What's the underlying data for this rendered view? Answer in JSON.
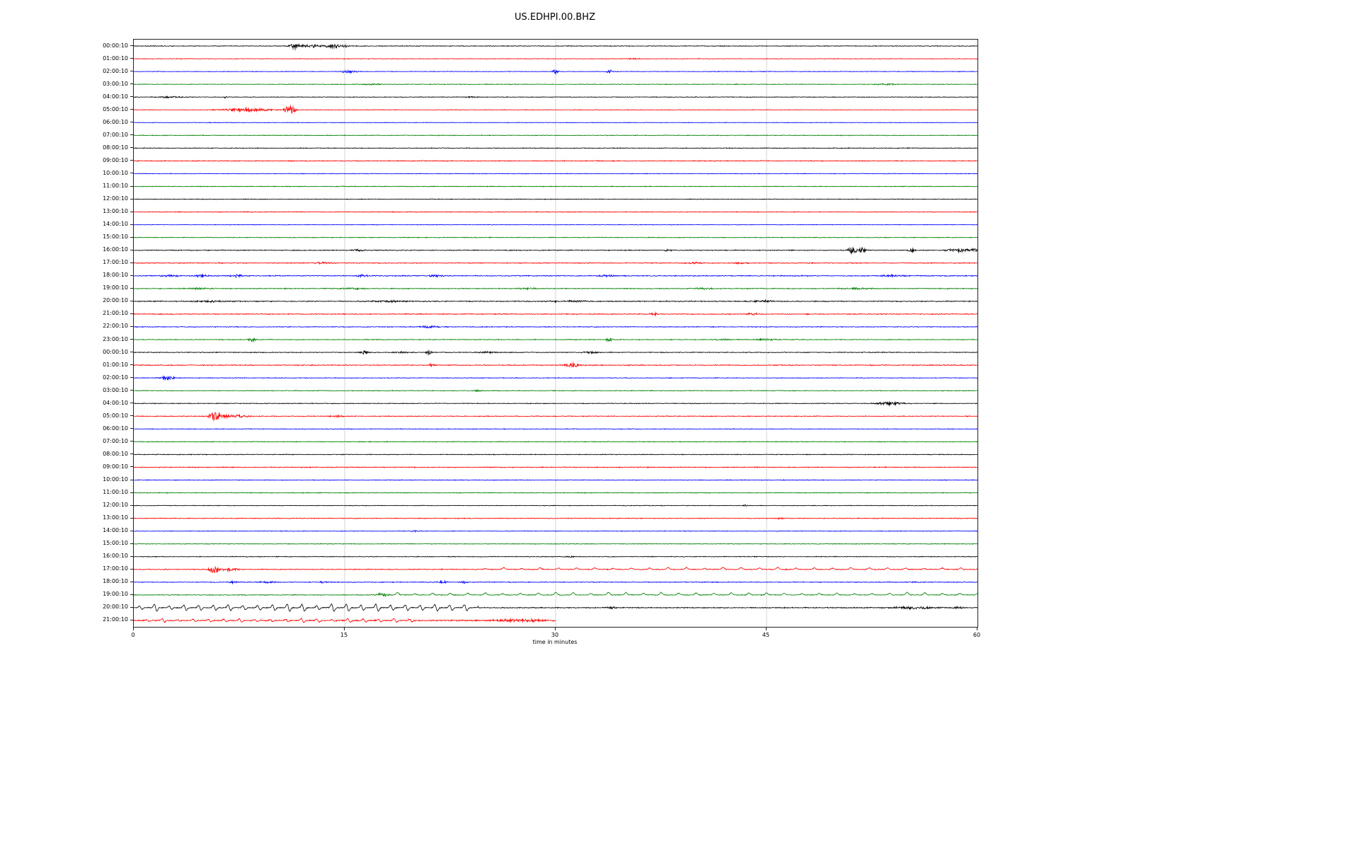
{
  "title": "US.EDHPI.00.BHZ",
  "xlabel": "time in minutes",
  "chart_data": {
    "type": "line",
    "title": "US.EDHPI.00.BHZ",
    "xlabel": "time in minutes",
    "xlim": [
      0,
      60
    ],
    "x_ticks": [
      0,
      15,
      30,
      45,
      60
    ],
    "grid_x": [
      15,
      30,
      45
    ],
    "grid_color": "#c8c8c8",
    "color_cycle": [
      "#000000",
      "#ff0000",
      "#0000ff",
      "#008000"
    ],
    "rows": [
      {
        "label": "00:00:10",
        "color": "#000000",
        "noise": 0.6,
        "events": [
          {
            "t": 11.4,
            "w": 0.25,
            "amp": 3.5
          },
          {
            "t": 12.5,
            "w": 0.8,
            "amp": 2
          },
          {
            "t": 14.2,
            "w": 0.5,
            "amp": 2.4
          },
          {
            "t": 15.0,
            "w": 0.2,
            "amp": 2
          }
        ]
      },
      {
        "label": "01:00:10",
        "color": "#ff0000",
        "noise": 0.5,
        "events": [
          {
            "t": 35.5,
            "w": 0.3,
            "amp": 1.2
          }
        ]
      },
      {
        "label": "02:00:10",
        "color": "#0000ff",
        "noise": 0.5,
        "events": [
          {
            "t": 15.3,
            "w": 0.4,
            "amp": 2
          },
          {
            "t": 30.0,
            "w": 0.15,
            "amp": 3
          },
          {
            "t": 33.8,
            "w": 0.15,
            "amp": 2.5
          }
        ]
      },
      {
        "label": "03:00:10",
        "color": "#008000",
        "noise": 0.55,
        "events": [
          {
            "t": 17,
            "w": 0.6,
            "amp": 1
          },
          {
            "t": 53.5,
            "w": 0.6,
            "amp": 1
          }
        ]
      },
      {
        "label": "04:00:10",
        "color": "#000000",
        "noise": 0.55,
        "events": [
          {
            "t": 2.5,
            "w": 0.8,
            "amp": 1.2
          },
          {
            "t": 6.5,
            "w": 0.1,
            "amp": 1.5
          },
          {
            "t": 24,
            "w": 0.3,
            "amp": 1
          }
        ]
      },
      {
        "label": "05:00:10",
        "color": "#ff0000",
        "noise": 0.5,
        "events": [
          {
            "t": 8,
            "w": 1.3,
            "amp": 2.2
          },
          {
            "t": 11.1,
            "w": 0.25,
            "amp": 6.5
          }
        ]
      },
      {
        "label": "06:00:10",
        "color": "#0000ff",
        "noise": 0.5
      },
      {
        "label": "07:00:10",
        "color": "#008000",
        "noise": 0.6
      },
      {
        "label": "08:00:10",
        "color": "#000000",
        "noise": 0.6
      },
      {
        "label": "09:00:10",
        "color": "#ff0000",
        "noise": 0.7
      },
      {
        "label": "10:00:10",
        "color": "#0000ff",
        "noise": 0.55
      },
      {
        "label": "11:00:10",
        "color": "#008000",
        "noise": 0.6
      },
      {
        "label": "12:00:10",
        "color": "#000000",
        "noise": 0.55
      },
      {
        "label": "13:00:10",
        "color": "#ff0000",
        "noise": 0.6
      },
      {
        "label": "14:00:10",
        "color": "#0000ff",
        "noise": 0.5
      },
      {
        "label": "15:00:10",
        "color": "#008000",
        "noise": 0.6
      },
      {
        "label": "16:00:10",
        "color": "#000000",
        "noise": 0.7,
        "events": [
          {
            "t": 16,
            "w": 0.3,
            "amp": 1.5
          },
          {
            "t": 38,
            "w": 0.3,
            "amp": 1.2
          },
          {
            "t": 51.1,
            "w": 0.25,
            "amp": 4.5
          },
          {
            "t": 51.8,
            "w": 0.2,
            "amp": 3.5
          },
          {
            "t": 55.3,
            "w": 0.2,
            "amp": 2.5
          },
          {
            "t": 58.6,
            "w": 0.7,
            "amp": 2
          },
          {
            "t": 59.8,
            "w": 0.3,
            "amp": 2.5
          }
        ]
      },
      {
        "label": "17:00:10",
        "color": "#ff0000",
        "noise": 0.7,
        "events": [
          {
            "t": 13.5,
            "w": 0.4,
            "amp": 1.3
          },
          {
            "t": 40,
            "w": 0.5,
            "amp": 1.2
          },
          {
            "t": 43,
            "w": 0.4,
            "amp": 1.2
          },
          {
            "t": 48,
            "w": 0.4,
            "amp": 1
          }
        ]
      },
      {
        "label": "18:00:10",
        "color": "#0000ff",
        "noise": 0.8,
        "events": [
          {
            "t": 2.5,
            "w": 0.5,
            "amp": 1.5
          },
          {
            "t": 4.8,
            "w": 0.4,
            "amp": 1.6
          },
          {
            "t": 7.3,
            "w": 0.4,
            "amp": 1.8
          },
          {
            "t": 16.3,
            "w": 0.4,
            "amp": 1.5
          },
          {
            "t": 21.5,
            "w": 0.4,
            "amp": 1.4
          },
          {
            "t": 33.5,
            "w": 0.5,
            "amp": 1.4
          },
          {
            "t": 54,
            "w": 0.6,
            "amp": 1.4
          }
        ]
      },
      {
        "label": "19:00:10",
        "color": "#008000",
        "noise": 0.7,
        "events": [
          {
            "t": 4.5,
            "w": 0.8,
            "amp": 1.2
          },
          {
            "t": 15.5,
            "w": 0.7,
            "amp": 1.2
          },
          {
            "t": 28,
            "w": 0.6,
            "amp": 1.2
          },
          {
            "t": 40.5,
            "w": 0.6,
            "amp": 1.1
          },
          {
            "t": 51.5,
            "w": 0.8,
            "amp": 1.2
          }
        ]
      },
      {
        "label": "20:00:10",
        "color": "#000000",
        "noise": 0.8,
        "events": [
          {
            "t": 5.5,
            "w": 1,
            "amp": 1.2
          },
          {
            "t": 18,
            "w": 1,
            "amp": 1.2
          },
          {
            "t": 31,
            "w": 1,
            "amp": 1.2
          },
          {
            "t": 44.7,
            "w": 0.8,
            "amp": 1.3
          }
        ]
      },
      {
        "label": "21:00:10",
        "color": "#ff0000",
        "noise": 0.75,
        "events": [
          {
            "t": 37,
            "w": 0.3,
            "amp": 1.8
          },
          {
            "t": 44,
            "w": 0.3,
            "amp": 1.6
          }
        ]
      },
      {
        "label": "22:00:10",
        "color": "#0000ff",
        "noise": 0.65,
        "events": [
          {
            "t": 21,
            "w": 0.5,
            "amp": 1.5
          }
        ]
      },
      {
        "label": "23:00:10",
        "color": "#008000",
        "noise": 0.65,
        "events": [
          {
            "t": 8.4,
            "w": 0.2,
            "amp": 2.5
          },
          {
            "t": 33.8,
            "w": 0.2,
            "amp": 2.5
          },
          {
            "t": 42,
            "w": 0.5,
            "amp": 1.2
          },
          {
            "t": 45,
            "w": 0.5,
            "amp": 1.2
          }
        ]
      },
      {
        "label": "00:00:10",
        "color": "#000000",
        "noise": 0.65,
        "events": [
          {
            "t": 16.4,
            "w": 0.25,
            "amp": 2.2
          },
          {
            "t": 19,
            "w": 0.3,
            "amp": 1.6
          },
          {
            "t": 21,
            "w": 0.15,
            "amp": 3
          },
          {
            "t": 25,
            "w": 0.6,
            "amp": 1.2
          },
          {
            "t": 32.5,
            "w": 0.4,
            "amp": 1.5
          }
        ]
      },
      {
        "label": "01:00:10",
        "color": "#ff0000",
        "noise": 0.75,
        "events": [
          {
            "t": 21.2,
            "w": 0.2,
            "amp": 1.8
          },
          {
            "t": 31.2,
            "w": 0.4,
            "amp": 2.8
          }
        ]
      },
      {
        "label": "02:00:10",
        "color": "#0000ff",
        "noise": 0.6,
        "events": [
          {
            "t": 2.4,
            "w": 0.4,
            "amp": 2.6
          }
        ]
      },
      {
        "label": "03:00:10",
        "color": "#008000",
        "noise": 0.6,
        "events": [
          {
            "t": 24.5,
            "w": 0.3,
            "amp": 1
          }
        ]
      },
      {
        "label": "04:00:10",
        "color": "#000000",
        "noise": 0.6,
        "events": [
          {
            "t": 53.7,
            "w": 0.7,
            "amp": 2.2
          }
        ]
      },
      {
        "label": "05:00:10",
        "color": "#ff0000",
        "noise": 0.65,
        "events": [
          {
            "t": 5.8,
            "w": 0.3,
            "amp": 6.5
          },
          {
            "t": 7,
            "w": 0.8,
            "amp": 2.2
          },
          {
            "t": 14.5,
            "w": 0.5,
            "amp": 1
          }
        ]
      },
      {
        "label": "06:00:10",
        "color": "#0000ff",
        "noise": 0.55
      },
      {
        "label": "07:00:10",
        "color": "#008000",
        "noise": 0.6
      },
      {
        "label": "08:00:10",
        "color": "#000000",
        "noise": 0.6
      },
      {
        "label": "09:00:10",
        "color": "#ff0000",
        "noise": 0.7
      },
      {
        "label": "10:00:10",
        "color": "#0000ff",
        "noise": 0.6
      },
      {
        "label": "11:00:10",
        "color": "#008000",
        "noise": 0.6
      },
      {
        "label": "12:00:10",
        "color": "#000000",
        "noise": 0.5,
        "events": [
          {
            "t": 43.5,
            "w": 0.15,
            "amp": 1.2
          }
        ]
      },
      {
        "label": "13:00:10",
        "color": "#ff0000",
        "noise": 0.65,
        "events": [
          {
            "t": 46,
            "w": 0.3,
            "amp": 1
          }
        ]
      },
      {
        "label": "14:00:10",
        "color": "#0000ff",
        "noise": 0.55,
        "events": [
          {
            "t": 20,
            "w": 0.3,
            "amp": 1
          }
        ]
      },
      {
        "label": "15:00:10",
        "color": "#008000",
        "noise": 0.6
      },
      {
        "label": "16:00:10",
        "color": "#000000",
        "noise": 0.6,
        "events": [
          {
            "t": 31,
            "w": 0.4,
            "amp": 1
          }
        ]
      },
      {
        "label": "17:00:10",
        "color": "#ff0000",
        "noise": 0.7,
        "events": [
          {
            "t": 5.7,
            "w": 0.25,
            "amp": 5.5
          },
          {
            "t": 6.8,
            "w": 0.6,
            "amp": 1.8
          }
        ],
        "spikes": [
          {
            "start": 25,
            "end": 60,
            "interval": 1.3,
            "amp": 2.2,
            "dir": 1
          }
        ]
      },
      {
        "label": "18:00:10",
        "color": "#0000ff",
        "noise": 0.65,
        "events": [
          {
            "t": 7,
            "w": 0.2,
            "amp": 1.8
          },
          {
            "t": 9.5,
            "w": 0.5,
            "amp": 1.3
          },
          {
            "t": 13.5,
            "w": 0.2,
            "amp": 1.5
          },
          {
            "t": 22,
            "w": 0.25,
            "amp": 1.8
          },
          {
            "t": 23.5,
            "w": 0.2,
            "amp": 1.8
          }
        ]
      },
      {
        "label": "19:00:10",
        "color": "#008000",
        "noise": 0.65,
        "events": [
          {
            "t": 17.8,
            "w": 0.4,
            "amp": 2
          }
        ],
        "spikes": [
          {
            "start": 17.5,
            "end": 60,
            "interval": 1.25,
            "amp": 2.8,
            "dir": 1
          }
        ]
      },
      {
        "label": "20:00:10",
        "color": "#000000",
        "noise": 0.75,
        "events": [
          {
            "t": 34,
            "w": 0.3,
            "amp": 1.5
          },
          {
            "t": 55.5,
            "w": 1.2,
            "amp": 1.8
          },
          {
            "t": 58.5,
            "w": 0.4,
            "amp": 1.5
          }
        ],
        "spikes": [
          {
            "start": 0.5,
            "end": 24,
            "interval": 1.05,
            "amp": 4,
            "dir": 0
          }
        ]
      },
      {
        "label": "21:00:10",
        "color": "#ff0000",
        "noise": 1.0,
        "end": 30,
        "events": [
          {
            "t": 27.5,
            "w": 1.5,
            "amp": 2
          }
        ],
        "spikes": [
          {
            "start": 1,
            "end": 20,
            "interval": 1.1,
            "amp": 2,
            "dir": 0
          }
        ]
      }
    ]
  }
}
